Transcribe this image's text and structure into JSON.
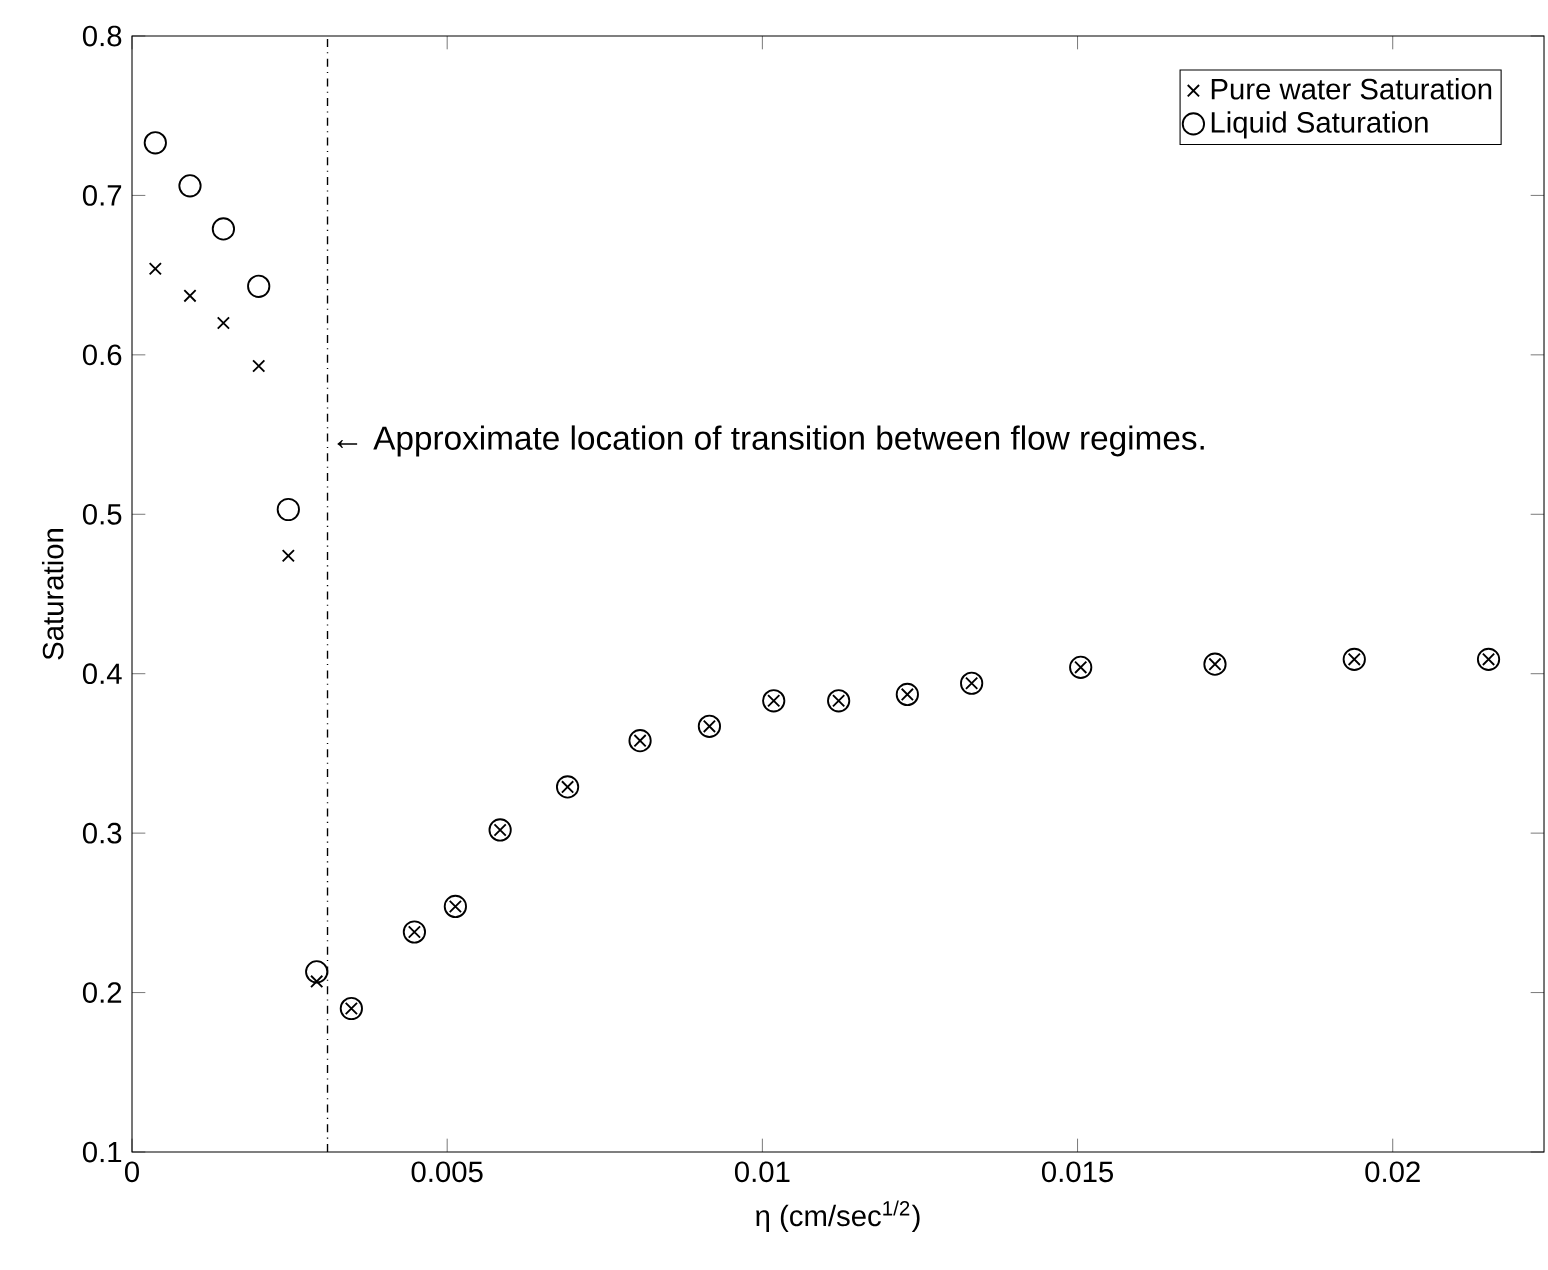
{
  "chart_data": {
    "type": "scatter",
    "xlabel": "η (cm/sec$^{1/2}$)",
    "ylabel": "Saturation",
    "xlim": [
      0,
      0.0224
    ],
    "ylim": [
      0.1,
      0.8
    ],
    "xticks": [
      0,
      0.005,
      0.01,
      0.015,
      0.02
    ],
    "yticks": [
      0.1,
      0.2,
      0.3,
      0.4,
      0.5,
      0.6,
      0.7,
      0.8
    ],
    "legend": "top right",
    "grid": false,
    "series": [
      {
        "name": "Pure water Saturation",
        "color": "#000000",
        "marker": "cross",
        "x": [
          0.00037,
          0.00092,
          0.00145,
          0.00201,
          0.00248,
          0.00293,
          0.00348,
          0.00448,
          0.00513,
          0.00584,
          0.00691,
          0.00806,
          0.00916,
          0.01018,
          0.01121,
          0.0123,
          0.01332,
          0.01505,
          0.01718,
          0.01939,
          0.02152
        ],
        "values": [
          0.654,
          0.637,
          0.62,
          0.593,
          0.474,
          0.207,
          0.19,
          0.238,
          0.254,
          0.302,
          0.329,
          0.358,
          0.367,
          0.383,
          0.383,
          0.387,
          0.394,
          0.404,
          0.406,
          0.409,
          0.409
        ]
      },
      {
        "name": "Liquid Saturation",
        "color": "#000000",
        "marker": "circle",
        "x": [
          0.00037,
          0.00092,
          0.00145,
          0.00201,
          0.00248,
          0.00293,
          0.00348,
          0.00448,
          0.00513,
          0.00584,
          0.00691,
          0.00806,
          0.00916,
          0.01018,
          0.01121,
          0.0123,
          0.01332,
          0.01505,
          0.01718,
          0.01939,
          0.02152
        ],
        "values": [
          0.733,
          0.706,
          0.679,
          0.643,
          0.503,
          0.213,
          0.19,
          0.238,
          0.254,
          0.302,
          0.329,
          0.358,
          0.367,
          0.383,
          0.383,
          0.387,
          0.394,
          0.404,
          0.406,
          0.409,
          0.409
        ]
      }
    ],
    "ref_lines": [
      {
        "axis": "x",
        "value": 0.0031,
        "line_style": "dashdot",
        "color": "#000000",
        "label": "← Approximate location of transition between flow regimes."
      }
    ]
  }
}
